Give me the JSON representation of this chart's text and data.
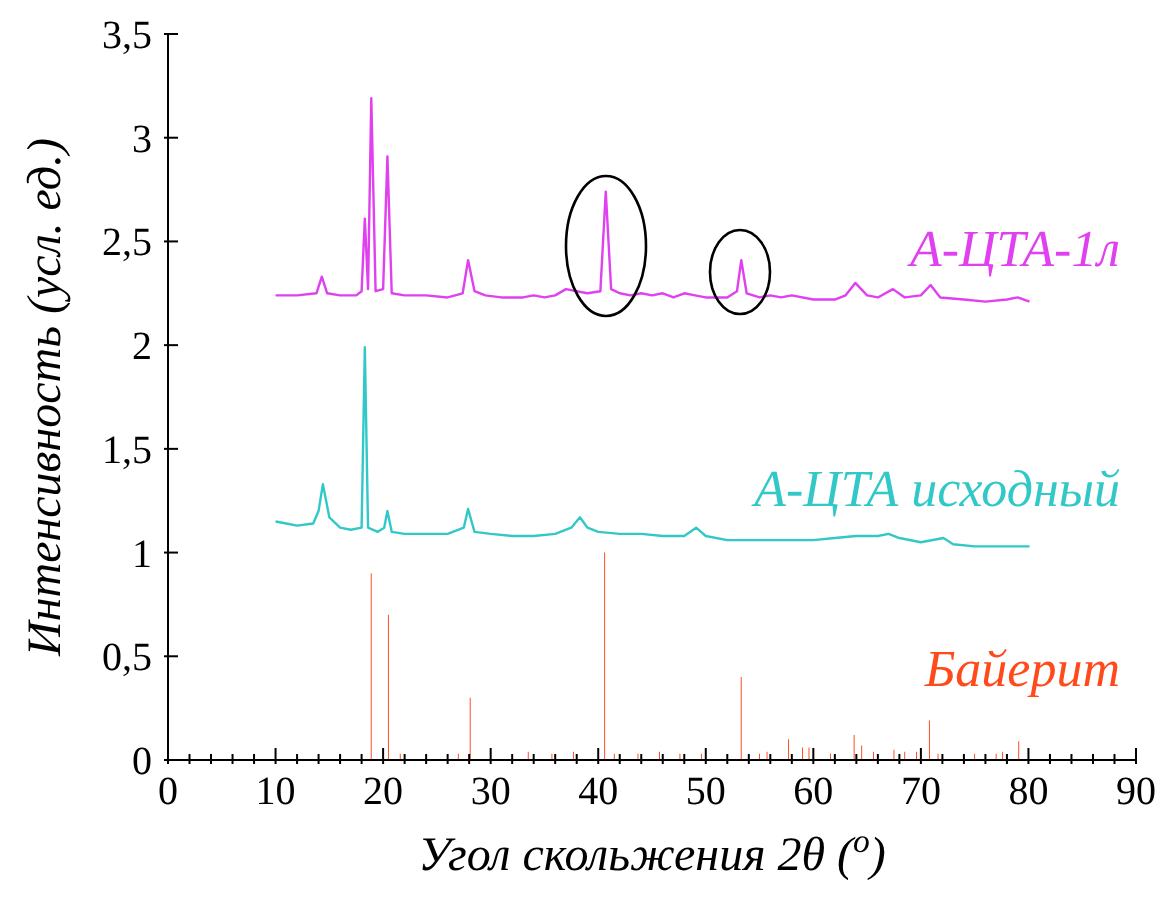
{
  "chart_data": {
    "type": "line",
    "xlabel": "Угол скольжения 2θ ($^{o}$)",
    "ylabel": "Интенсивность (усл. ед.)",
    "xlim": [
      0,
      90
    ],
    "ylim": [
      0,
      3.5
    ],
    "xticks": [
      0,
      {
        "value": 2,
        "label": null
      },
      {
        "value": 4,
        "label": null
      },
      {
        "value": 6,
        "label": null
      },
      {
        "value": 8,
        "label": null
      },
      10,
      {
        "value": 12,
        "label": null
      },
      {
        "value": 14,
        "label": null
      },
      {
        "value": 16,
        "label": null
      },
      {
        "value": 18,
        "label": null
      },
      20,
      {
        "value": 22,
        "label": null
      },
      {
        "value": 24,
        "label": null
      },
      {
        "value": 26,
        "label": null
      },
      {
        "value": 28,
        "label": null
      },
      30,
      {
        "value": 32,
        "label": null
      },
      {
        "value": 34,
        "label": null
      },
      {
        "value": 36,
        "label": null
      },
      {
        "value": 38,
        "label": null
      },
      40,
      {
        "value": 42,
        "label": null
      },
      {
        "value": 44,
        "label": null
      },
      {
        "value": 46,
        "label": null
      },
      {
        "value": 48,
        "label": null
      },
      50,
      {
        "value": 52,
        "label": null
      },
      {
        "value": 54,
        "label": null
      },
      {
        "value": 56,
        "label": null
      },
      {
        "value": 58,
        "label": null
      },
      60,
      {
        "value": 62,
        "label": null
      },
      {
        "value": 64,
        "label": null
      },
      {
        "value": 66,
        "label": null
      },
      {
        "value": 68,
        "label": null
      },
      70,
      {
        "value": 72,
        "label": null
      },
      {
        "value": 74,
        "label": null
      },
      {
        "value": 76,
        "label": null
      },
      {
        "value": 78,
        "label": null
      },
      80,
      {
        "value": 82,
        "label": null
      },
      {
        "value": 84,
        "label": null
      },
      {
        "value": 86,
        "label": null
      },
      {
        "value": 88,
        "label": null
      },
      90
    ],
    "yticks": [
      0,
      {
        "value": 0.5,
        "label": "0,5"
      },
      1,
      {
        "value": 1.5,
        "label": "1,5"
      },
      2,
      {
        "value": 2.5,
        "label": "2,5"
      },
      3,
      {
        "value": 3.5,
        "label": "3,5"
      }
    ],
    "grid": false,
    "legend": false,
    "marker": "none",
    "line_style": "solid",
    "series": [
      {
        "name": "А-ЦТА-1л",
        "color": "#e040f0",
        "x": [
          10,
          12,
          13.8,
          14.3,
          14.8,
          16,
          17.5,
          18,
          18.3,
          18.6,
          18.9,
          19.3,
          20,
          20.4,
          20.8,
          22,
          24,
          26,
          27.4,
          27.9,
          28.5,
          29.5,
          31,
          33,
          34,
          35,
          36,
          37,
          38,
          39,
          40.2,
          40.7,
          41.2,
          42,
          43,
          44,
          45,
          46,
          47,
          48,
          49,
          50,
          51,
          52,
          52.9,
          53.3,
          53.8,
          55,
          56,
          57,
          58,
          60,
          62,
          63,
          63.9,
          65,
          66,
          67.4,
          68.5,
          70,
          70.9,
          71.8,
          74,
          76,
          78,
          79,
          80.1
        ],
        "values": [
          2.24,
          2.24,
          2.25,
          2.33,
          2.25,
          2.24,
          2.24,
          2.26,
          2.61,
          2.27,
          3.19,
          2.26,
          2.27,
          2.91,
          2.25,
          2.24,
          2.24,
          2.23,
          2.25,
          2.41,
          2.26,
          2.24,
          2.23,
          2.23,
          2.24,
          2.23,
          2.24,
          2.27,
          2.26,
          2.25,
          2.26,
          2.74,
          2.27,
          2.25,
          2.24,
          2.25,
          2.24,
          2.25,
          2.23,
          2.25,
          2.24,
          2.23,
          2.23,
          2.23,
          2.26,
          2.41,
          2.25,
          2.23,
          2.24,
          2.23,
          2.24,
          2.22,
          2.22,
          2.24,
          2.3,
          2.24,
          2.23,
          2.27,
          2.23,
          2.24,
          2.29,
          2.23,
          2.22,
          2.21,
          2.22,
          2.23,
          2.21
        ]
      },
      {
        "name": "А-ЦТА исходный",
        "color": "#33c8c8",
        "x": [
          10,
          11,
          12,
          13.5,
          14,
          14.4,
          15,
          16,
          17,
          18,
          18.3,
          18.6,
          19.5,
          20.1,
          20.4,
          20.8,
          22,
          24,
          26,
          27.5,
          27.9,
          28.5,
          30,
          32,
          34,
          36,
          37.5,
          38.3,
          39,
          40,
          42,
          44,
          46,
          48,
          49.1,
          50,
          52,
          54,
          56,
          58,
          60,
          62,
          64,
          66,
          67,
          68,
          70,
          72.1,
          73,
          75,
          77,
          80.1
        ],
        "values": [
          1.15,
          1.14,
          1.13,
          1.14,
          1.2,
          1.33,
          1.17,
          1.12,
          1.11,
          1.12,
          1.99,
          1.12,
          1.1,
          1.12,
          1.2,
          1.1,
          1.09,
          1.09,
          1.09,
          1.12,
          1.21,
          1.1,
          1.09,
          1.08,
          1.08,
          1.09,
          1.12,
          1.17,
          1.12,
          1.1,
          1.09,
          1.09,
          1.08,
          1.08,
          1.12,
          1.08,
          1.06,
          1.06,
          1.06,
          1.06,
          1.06,
          1.07,
          1.08,
          1.08,
          1.09,
          1.07,
          1.05,
          1.07,
          1.04,
          1.03,
          1.03,
          1.03
        ]
      },
      {
        "name": "Байерит",
        "type": "bar",
        "color": "#ff4a1c",
        "x": [
          18.9,
          20.5,
          21.6,
          27,
          28.1,
          33.5,
          35.7,
          37.7,
          40.6,
          41.5,
          43.7,
          45.7,
          47.6,
          49.6,
          53.3,
          55,
          55.7,
          57.7,
          59,
          59.6,
          61.6,
          63.8,
          64.5,
          65.6,
          67.5,
          68.5,
          69.6,
          70.8,
          71.6,
          75,
          77,
          77.6,
          79.1
        ],
        "values": [
          0.9,
          0.7,
          0.03,
          0.03,
          0.3,
          0.04,
          0.03,
          0.04,
          1,
          0.03,
          0.03,
          0.04,
          0.03,
          0.03,
          0.4,
          0.03,
          0.04,
          0.1,
          0.06,
          0.06,
          0.03,
          0.12,
          0.07,
          0.04,
          0.05,
          0.04,
          0.04,
          0.19,
          0.03,
          0.03,
          0.03,
          0.04,
          0.09
        ]
      }
    ]
  }
}
